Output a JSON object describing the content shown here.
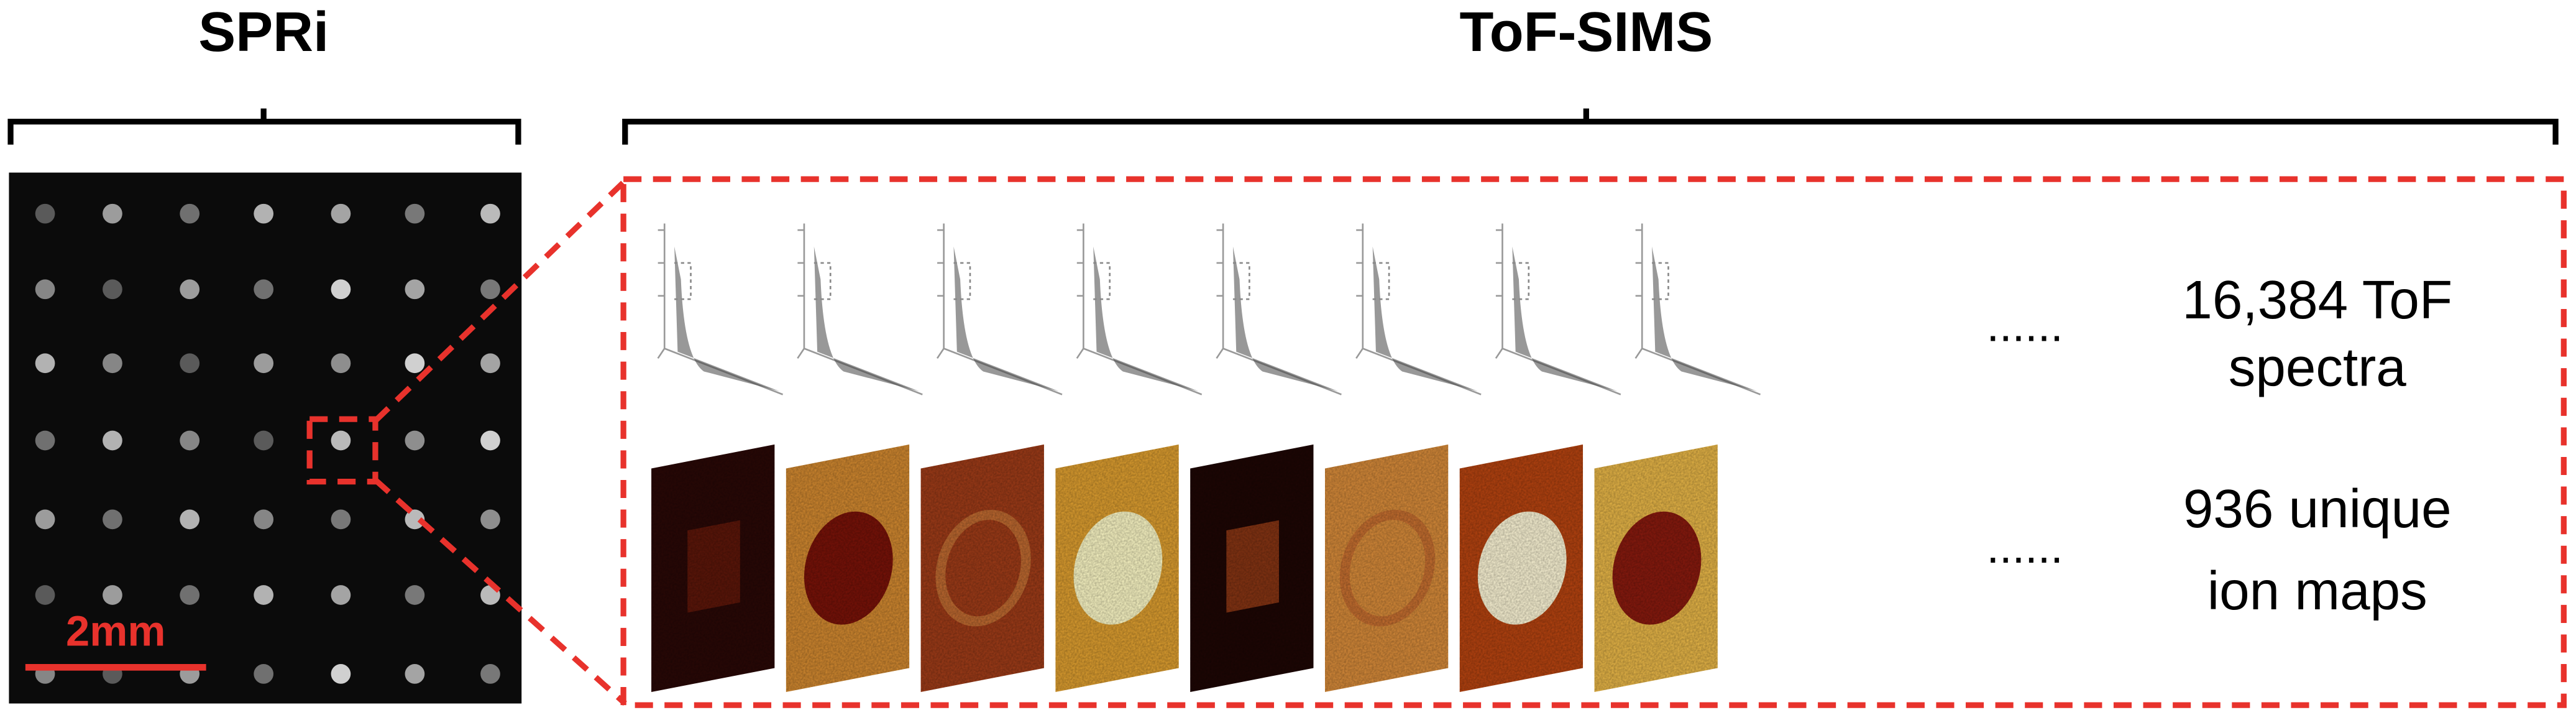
{
  "header": {
    "spri": "SPRi",
    "tofsims": "ToF-SIMS"
  },
  "scale_bar": "2mm",
  "rows": [
    {
      "ellipsis": "......",
      "label_lines": [
        "16,384 ToF",
        "spectra"
      ]
    },
    {
      "ellipsis": "......",
      "label_lines": [
        "936 unique",
        "ion maps"
      ]
    }
  ]
}
